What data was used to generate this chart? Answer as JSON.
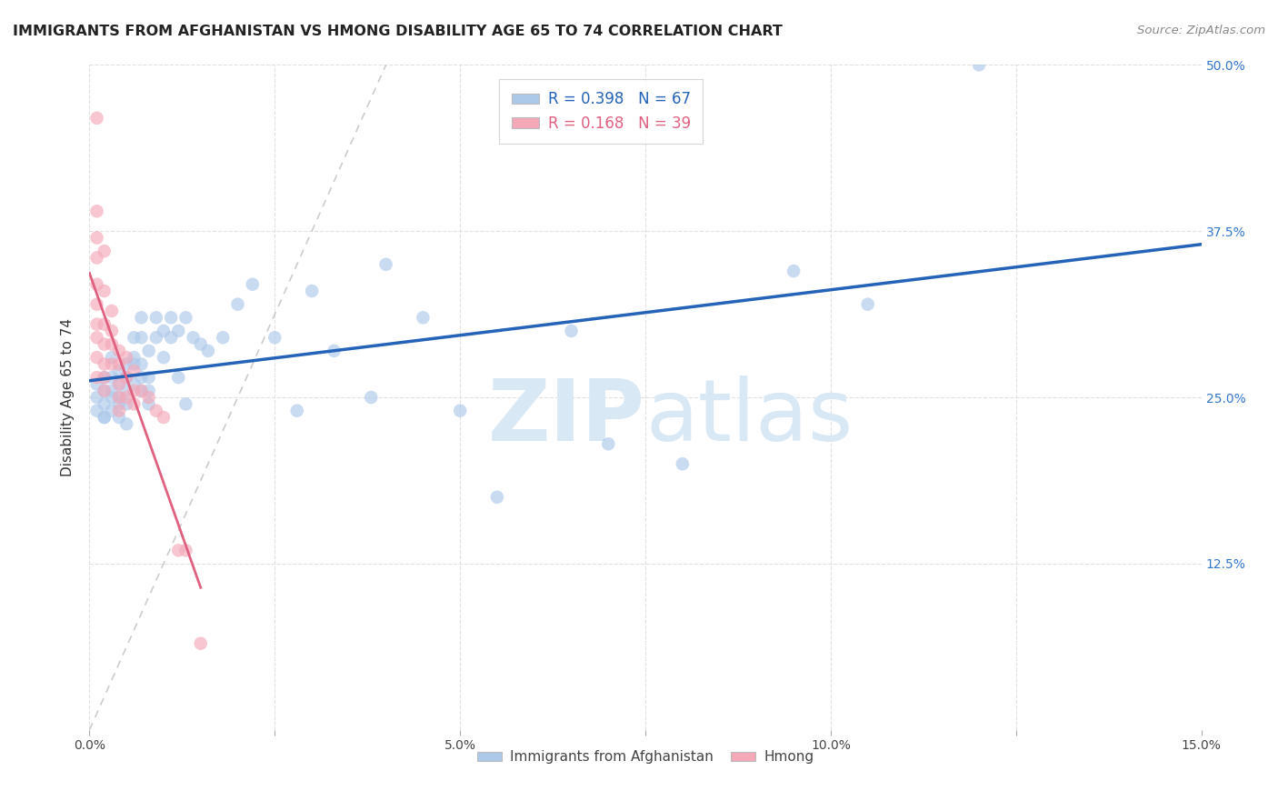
{
  "title": "IMMIGRANTS FROM AFGHANISTAN VS HMONG DISABILITY AGE 65 TO 74 CORRELATION CHART",
  "source": "Source: ZipAtlas.com",
  "ylabel": "Disability Age 65 to 74",
  "xlim": [
    0.0,
    0.15
  ],
  "ylim": [
    0.0,
    0.5
  ],
  "afghanistan_R": 0.398,
  "afghanistan_N": 67,
  "hmong_R": 0.168,
  "hmong_N": 39,
  "afghanistan_color": "#adc9ea",
  "afghanistan_line_color": "#2563b8",
  "hmong_color": "#f4a8b8",
  "hmong_line_color": "#e06080",
  "diag_line_color": "#cccccc",
  "watermark_color": "#d8e8f5",
  "background_color": "#ffffff",
  "grid_color": "#e0e0e0",
  "afghanistan_x": [
    0.001,
    0.001,
    0.001,
    0.002,
    0.002,
    0.002,
    0.002,
    0.002,
    0.003,
    0.003,
    0.003,
    0.003,
    0.003,
    0.004,
    0.004,
    0.004,
    0.004,
    0.004,
    0.005,
    0.005,
    0.005,
    0.005,
    0.005,
    0.006,
    0.006,
    0.006,
    0.006,
    0.007,
    0.007,
    0.007,
    0.007,
    0.007,
    0.008,
    0.008,
    0.008,
    0.008,
    0.009,
    0.009,
    0.01,
    0.01,
    0.011,
    0.011,
    0.012,
    0.012,
    0.013,
    0.013,
    0.014,
    0.015,
    0.016,
    0.018,
    0.02,
    0.022,
    0.025,
    0.028,
    0.03,
    0.033,
    0.038,
    0.04,
    0.045,
    0.05,
    0.055,
    0.065,
    0.07,
    0.08,
    0.095,
    0.105,
    0.12
  ],
  "afghanistan_y": [
    0.24,
    0.25,
    0.26,
    0.235,
    0.245,
    0.255,
    0.265,
    0.235,
    0.255,
    0.265,
    0.25,
    0.24,
    0.28,
    0.26,
    0.25,
    0.27,
    0.245,
    0.235,
    0.265,
    0.255,
    0.275,
    0.245,
    0.23,
    0.275,
    0.26,
    0.295,
    0.28,
    0.295,
    0.275,
    0.265,
    0.255,
    0.31,
    0.285,
    0.265,
    0.255,
    0.245,
    0.31,
    0.295,
    0.3,
    0.28,
    0.31,
    0.295,
    0.3,
    0.265,
    0.31,
    0.245,
    0.295,
    0.29,
    0.285,
    0.295,
    0.32,
    0.335,
    0.295,
    0.24,
    0.33,
    0.285,
    0.25,
    0.35,
    0.31,
    0.24,
    0.175,
    0.3,
    0.215,
    0.2,
    0.345,
    0.32,
    0.5
  ],
  "hmong_x": [
    0.001,
    0.001,
    0.001,
    0.001,
    0.001,
    0.001,
    0.001,
    0.001,
    0.001,
    0.001,
    0.002,
    0.002,
    0.002,
    0.002,
    0.002,
    0.002,
    0.002,
    0.003,
    0.003,
    0.003,
    0.003,
    0.004,
    0.004,
    0.004,
    0.004,
    0.004,
    0.005,
    0.005,
    0.005,
    0.006,
    0.006,
    0.006,
    0.007,
    0.008,
    0.009,
    0.01,
    0.012,
    0.013,
    0.015
  ],
  "hmong_y": [
    0.46,
    0.39,
    0.37,
    0.355,
    0.335,
    0.32,
    0.305,
    0.295,
    0.28,
    0.265,
    0.36,
    0.33,
    0.305,
    0.29,
    0.275,
    0.265,
    0.255,
    0.315,
    0.3,
    0.29,
    0.275,
    0.285,
    0.275,
    0.26,
    0.25,
    0.24,
    0.28,
    0.265,
    0.25,
    0.27,
    0.255,
    0.245,
    0.255,
    0.25,
    0.24,
    0.235,
    0.135,
    0.135,
    0.065
  ],
  "hmong_line_x": [
    0.0,
    0.015
  ],
  "diag_line_end_x": 0.04
}
